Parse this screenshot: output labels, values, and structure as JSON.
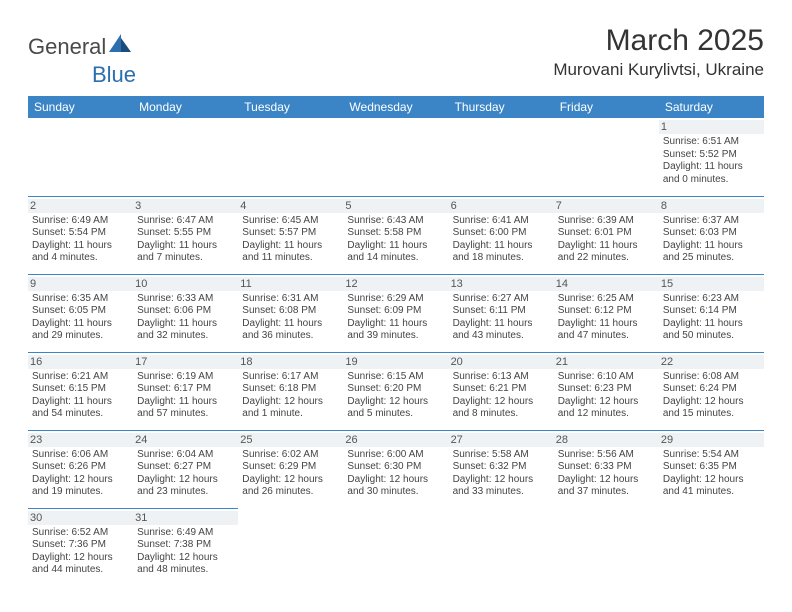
{
  "logo": {
    "part1": "General",
    "part2": "Blue"
  },
  "title": "March 2025",
  "location": "Murovani Kurylivtsi, Ukraine",
  "dayNames": [
    "Sunday",
    "Monday",
    "Tuesday",
    "Wednesday",
    "Thursday",
    "Friday",
    "Saturday"
  ],
  "colors": {
    "header_bg": "#3b85c6",
    "header_text": "#ffffff",
    "cell_border": "#3b85c6",
    "daynum_bg": "#eef2f4",
    "text": "#444444",
    "logo_accent": "#2c6fb0"
  },
  "layout": {
    "startOffset": 6,
    "rows": 6,
    "cols": 7
  },
  "days": [
    {
      "n": "1",
      "sunrise": "Sunrise: 6:51 AM",
      "sunset": "Sunset: 5:52 PM",
      "daylight": "Daylight: 11 hours and 0 minutes."
    },
    {
      "n": "2",
      "sunrise": "Sunrise: 6:49 AM",
      "sunset": "Sunset: 5:54 PM",
      "daylight": "Daylight: 11 hours and 4 minutes."
    },
    {
      "n": "3",
      "sunrise": "Sunrise: 6:47 AM",
      "sunset": "Sunset: 5:55 PM",
      "daylight": "Daylight: 11 hours and 7 minutes."
    },
    {
      "n": "4",
      "sunrise": "Sunrise: 6:45 AM",
      "sunset": "Sunset: 5:57 PM",
      "daylight": "Daylight: 11 hours and 11 minutes."
    },
    {
      "n": "5",
      "sunrise": "Sunrise: 6:43 AM",
      "sunset": "Sunset: 5:58 PM",
      "daylight": "Daylight: 11 hours and 14 minutes."
    },
    {
      "n": "6",
      "sunrise": "Sunrise: 6:41 AM",
      "sunset": "Sunset: 6:00 PM",
      "daylight": "Daylight: 11 hours and 18 minutes."
    },
    {
      "n": "7",
      "sunrise": "Sunrise: 6:39 AM",
      "sunset": "Sunset: 6:01 PM",
      "daylight": "Daylight: 11 hours and 22 minutes."
    },
    {
      "n": "8",
      "sunrise": "Sunrise: 6:37 AM",
      "sunset": "Sunset: 6:03 PM",
      "daylight": "Daylight: 11 hours and 25 minutes."
    },
    {
      "n": "9",
      "sunrise": "Sunrise: 6:35 AM",
      "sunset": "Sunset: 6:05 PM",
      "daylight": "Daylight: 11 hours and 29 minutes."
    },
    {
      "n": "10",
      "sunrise": "Sunrise: 6:33 AM",
      "sunset": "Sunset: 6:06 PM",
      "daylight": "Daylight: 11 hours and 32 minutes."
    },
    {
      "n": "11",
      "sunrise": "Sunrise: 6:31 AM",
      "sunset": "Sunset: 6:08 PM",
      "daylight": "Daylight: 11 hours and 36 minutes."
    },
    {
      "n": "12",
      "sunrise": "Sunrise: 6:29 AM",
      "sunset": "Sunset: 6:09 PM",
      "daylight": "Daylight: 11 hours and 39 minutes."
    },
    {
      "n": "13",
      "sunrise": "Sunrise: 6:27 AM",
      "sunset": "Sunset: 6:11 PM",
      "daylight": "Daylight: 11 hours and 43 minutes."
    },
    {
      "n": "14",
      "sunrise": "Sunrise: 6:25 AM",
      "sunset": "Sunset: 6:12 PM",
      "daylight": "Daylight: 11 hours and 47 minutes."
    },
    {
      "n": "15",
      "sunrise": "Sunrise: 6:23 AM",
      "sunset": "Sunset: 6:14 PM",
      "daylight": "Daylight: 11 hours and 50 minutes."
    },
    {
      "n": "16",
      "sunrise": "Sunrise: 6:21 AM",
      "sunset": "Sunset: 6:15 PM",
      "daylight": "Daylight: 11 hours and 54 minutes."
    },
    {
      "n": "17",
      "sunrise": "Sunrise: 6:19 AM",
      "sunset": "Sunset: 6:17 PM",
      "daylight": "Daylight: 11 hours and 57 minutes."
    },
    {
      "n": "18",
      "sunrise": "Sunrise: 6:17 AM",
      "sunset": "Sunset: 6:18 PM",
      "daylight": "Daylight: 12 hours and 1 minute."
    },
    {
      "n": "19",
      "sunrise": "Sunrise: 6:15 AM",
      "sunset": "Sunset: 6:20 PM",
      "daylight": "Daylight: 12 hours and 5 minutes."
    },
    {
      "n": "20",
      "sunrise": "Sunrise: 6:13 AM",
      "sunset": "Sunset: 6:21 PM",
      "daylight": "Daylight: 12 hours and 8 minutes."
    },
    {
      "n": "21",
      "sunrise": "Sunrise: 6:10 AM",
      "sunset": "Sunset: 6:23 PM",
      "daylight": "Daylight: 12 hours and 12 minutes."
    },
    {
      "n": "22",
      "sunrise": "Sunrise: 6:08 AM",
      "sunset": "Sunset: 6:24 PM",
      "daylight": "Daylight: 12 hours and 15 minutes."
    },
    {
      "n": "23",
      "sunrise": "Sunrise: 6:06 AM",
      "sunset": "Sunset: 6:26 PM",
      "daylight": "Daylight: 12 hours and 19 minutes."
    },
    {
      "n": "24",
      "sunrise": "Sunrise: 6:04 AM",
      "sunset": "Sunset: 6:27 PM",
      "daylight": "Daylight: 12 hours and 23 minutes."
    },
    {
      "n": "25",
      "sunrise": "Sunrise: 6:02 AM",
      "sunset": "Sunset: 6:29 PM",
      "daylight": "Daylight: 12 hours and 26 minutes."
    },
    {
      "n": "26",
      "sunrise": "Sunrise: 6:00 AM",
      "sunset": "Sunset: 6:30 PM",
      "daylight": "Daylight: 12 hours and 30 minutes."
    },
    {
      "n": "27",
      "sunrise": "Sunrise: 5:58 AM",
      "sunset": "Sunset: 6:32 PM",
      "daylight": "Daylight: 12 hours and 33 minutes."
    },
    {
      "n": "28",
      "sunrise": "Sunrise: 5:56 AM",
      "sunset": "Sunset: 6:33 PM",
      "daylight": "Daylight: 12 hours and 37 minutes."
    },
    {
      "n": "29",
      "sunrise": "Sunrise: 5:54 AM",
      "sunset": "Sunset: 6:35 PM",
      "daylight": "Daylight: 12 hours and 41 minutes."
    },
    {
      "n": "30",
      "sunrise": "Sunrise: 6:52 AM",
      "sunset": "Sunset: 7:36 PM",
      "daylight": "Daylight: 12 hours and 44 minutes."
    },
    {
      "n": "31",
      "sunrise": "Sunrise: 6:49 AM",
      "sunset": "Sunset: 7:38 PM",
      "daylight": "Daylight: 12 hours and 48 minutes."
    }
  ]
}
